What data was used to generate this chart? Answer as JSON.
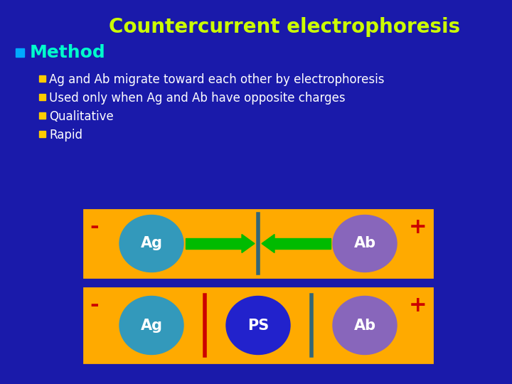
{
  "bg_color": "#1a1aaa",
  "title": "Countercurrent electrophoresis",
  "title_color": "#ccff00",
  "title_fontsize": 20,
  "method_label": "Method",
  "method_color": "#00ffcc",
  "method_bullet_color": "#00aaff",
  "method_fontsize": 18,
  "bullet_color": "#ffcc00",
  "bullet_text_color": "#ffffff",
  "bullet_fontsize": 12,
  "bullets": [
    "Ag and Ab migrate toward each other by electrophoresis",
    "Used only when Ag and Ab have opposite charges",
    "Qualitative",
    "Rapid"
  ],
  "box_color": "#ffaa00",
  "box_edge_color": "#dd8800",
  "ag_color": "#3399bb",
  "ab_color": "#8866bb",
  "ps_color": "#2222cc",
  "circle_text_color": "#ffffff",
  "circle_text_fontsize": 15,
  "arrow_color": "#00bb00",
  "minus_color": "#cc0000",
  "plus_color": "#cc0000",
  "line_color_gray": "#336677",
  "line_color_red": "#cc0000"
}
